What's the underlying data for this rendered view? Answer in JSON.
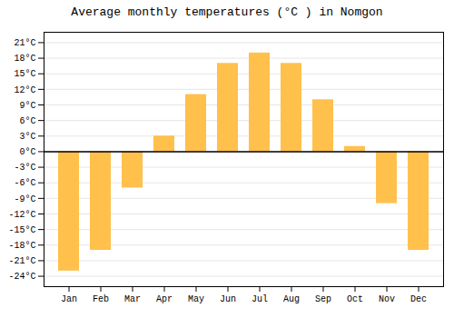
{
  "chart_data": {
    "type": "bar",
    "title": "Average monthly temperatures (°C ) in Nomgon",
    "categories": [
      "Jan",
      "Feb",
      "Mar",
      "Apr",
      "May",
      "Jun",
      "Jul",
      "Aug",
      "Sep",
      "Oct",
      "Nov",
      "Dec"
    ],
    "values": [
      -23,
      -19,
      -7,
      3,
      11,
      17,
      19,
      17,
      10,
      1,
      -10,
      -19
    ],
    "color": "#FFC04C",
    "ylim": [
      -26,
      23
    ],
    "yticks": [
      {
        "value": -24,
        "label": "-24°C"
      },
      {
        "value": -21,
        "label": "-21°C"
      },
      {
        "value": -18,
        "label": "-18°C"
      },
      {
        "value": -15,
        "label": "-15°C"
      },
      {
        "value": -12,
        "label": "-12°C"
      },
      {
        "value": -9,
        "label": "-9°C"
      },
      {
        "value": -6,
        "label": "-6°C"
      },
      {
        "value": -3,
        "label": "-3°C"
      },
      {
        "value": 0,
        "label": "0°C"
      },
      {
        "value": 3,
        "label": "3°C"
      },
      {
        "value": 6,
        "label": "6°C"
      },
      {
        "value": 9,
        "label": "9°C"
      },
      {
        "value": 12,
        "label": "12°C"
      },
      {
        "value": 15,
        "label": "15°C"
      },
      {
        "value": 18,
        "label": "18°C"
      },
      {
        "value": 21,
        "label": "21°C"
      }
    ],
    "grid": true
  }
}
